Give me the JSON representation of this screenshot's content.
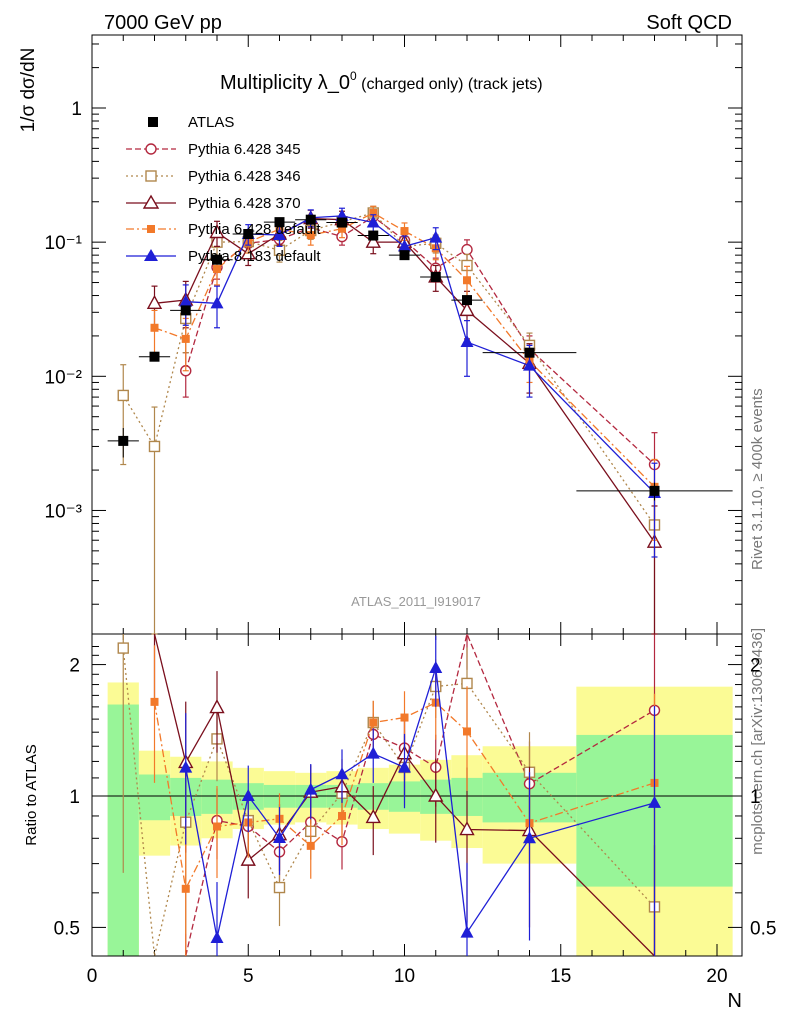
{
  "header": {
    "left": "7000 GeV pp",
    "right": "Soft QCD"
  },
  "side_labels": {
    "rivet": "Rivet 3.1.10, ≥ 400k events",
    "mcplots": "mcplots.cern.ch [arXiv:1306.3436]"
  },
  "chart_data": {
    "type": "line",
    "title_main": "Multiplicity λ_0",
    "title_sup": "0",
    "title_suffix": " (charged only) (track jets)",
    "analysis_label": "ATLAS_2011_I919017",
    "xlabel": "N",
    "ylabel_top": "1/σ dσ/dN",
    "ylabel_bottom": "Ratio to ATLAS",
    "xlim": [
      0,
      20.8
    ],
    "ylim_top": [
      0.00012,
      3.5
    ],
    "ylim_bottom": [
      0.43,
      2.35
    ],
    "x_ticks": [
      "0",
      "5",
      "10",
      "15",
      "20"
    ],
    "y_ticks_top": [
      "1",
      "10⁻¹",
      "10⁻²",
      "10⁻³"
    ],
    "y_ticks_bottom": [
      "0.5",
      "1",
      "2"
    ],
    "legend": [
      "ATLAS",
      "Pythia 6.428 345",
      "Pythia 6.428 346",
      "Pythia 6.428 370",
      "Pythia 6.428 default",
      "Pythia 8.183 default"
    ],
    "data": {
      "name": "ATLAS",
      "color": "#000000",
      "x": [
        1,
        2,
        3,
        4,
        5,
        6,
        7,
        8,
        9,
        10,
        11,
        12,
        14,
        18
      ],
      "y": [
        0.0033,
        0.014,
        0.031,
        0.074,
        0.115,
        0.141,
        0.147,
        0.14,
        0.112,
        0.08,
        0.055,
        0.037,
        0.015,
        0.0014
      ],
      "xerr": [
        0.5,
        0.5,
        0.5,
        0.5,
        0.5,
        0.5,
        0.5,
        0.5,
        0.5,
        0.5,
        0.5,
        0.5,
        1.5,
        2.5
      ],
      "stat_band": [
        0.62,
        0.12,
        0.1,
        0.09,
        0.07,
        0.06,
        0.06,
        0.06,
        0.07,
        0.08,
        0.09,
        0.1,
        0.13,
        0.38
      ],
      "total_band": [
        0.82,
        0.27,
        0.23,
        0.2,
        0.16,
        0.14,
        0.13,
        0.14,
        0.16,
        0.18,
        0.21,
        0.24,
        0.3,
        0.78
      ]
    },
    "series": [
      {
        "name": "Pythia 6.428 345",
        "color": "#b3283f",
        "dash": "6,3",
        "marker": "open-circle",
        "x": [
          3,
          4,
          5,
          6,
          7,
          8,
          9,
          10,
          11,
          12,
          14,
          18
        ],
        "y": [
          0.011,
          0.065,
          0.098,
          0.105,
          0.128,
          0.11,
          0.155,
          0.103,
          0.064,
          0.088,
          0.016,
          0.0022
        ],
        "yerr": [
          0.004,
          0.012,
          0.015,
          0.015,
          0.016,
          0.015,
          0.018,
          0.016,
          0.012,
          0.016,
          0.004,
          0.0016
        ]
      },
      {
        "name": "Pythia 6.428 346",
        "color": "#b0874c",
        "dash": "2,3",
        "marker": "open-square",
        "x": [
          1,
          2,
          3,
          4,
          5,
          6,
          7,
          8,
          9,
          10,
          11,
          12,
          14,
          18
        ],
        "y": [
          0.0072,
          0.003,
          0.027,
          0.1,
          0.101,
          0.087,
          0.122,
          0.142,
          0.165,
          0.093,
          0.098,
          0.067,
          0.017,
          0.00078
        ],
        "yerr": [
          0.005,
          0.0029,
          0.012,
          0.02,
          0.017,
          0.016,
          0.017,
          0.018,
          0.02,
          0.017,
          0.015,
          0.014,
          0.004,
          0.0007
        ]
      },
      {
        "name": "Pythia 6.428 370",
        "color": "#7a0f1d",
        "dash": "",
        "marker": "open-triangle",
        "x": [
          2,
          3,
          4,
          5,
          6,
          7,
          8,
          9,
          10,
          11,
          12,
          14,
          18
        ],
        "y": [
          0.035,
          0.037,
          0.118,
          0.082,
          0.115,
          0.15,
          0.147,
          0.1,
          0.1,
          0.055,
          0.031,
          0.0125,
          0.00058
        ],
        "yerr": [
          0.012,
          0.014,
          0.025,
          0.015,
          0.02,
          0.023,
          0.023,
          0.018,
          0.02,
          0.012,
          0.012,
          0.005,
          0.0005
        ]
      },
      {
        "name": "Pythia 6.428 default",
        "color": "#f2792a",
        "dash": "8,3,2,3",
        "marker": "filled-square",
        "x": [
          2,
          3,
          4,
          5,
          6,
          7,
          8,
          9,
          10,
          11,
          12,
          14,
          18
        ],
        "y": [
          0.023,
          0.019,
          0.063,
          0.1,
          0.125,
          0.113,
          0.126,
          0.165,
          0.121,
          0.09,
          0.052,
          0.013,
          0.0015
        ],
        "yerr": [
          0.008,
          0.008,
          0.015,
          0.017,
          0.018,
          0.018,
          0.018,
          0.02,
          0.018,
          0.016,
          0.014,
          0.004,
          0.0009
        ]
      },
      {
        "name": "Pythia 8.183 default",
        "color": "#1f1fd6",
        "dash": "",
        "marker": "filled-triangle",
        "x": [
          3,
          4,
          5,
          6,
          7,
          8,
          9,
          10,
          11,
          12,
          14,
          18
        ],
        "y": [
          0.036,
          0.035,
          0.115,
          0.113,
          0.152,
          0.157,
          0.14,
          0.093,
          0.108,
          0.018,
          0.012,
          0.00135
        ],
        "yerr": [
          0.012,
          0.012,
          0.02,
          0.02,
          0.022,
          0.022,
          0.02,
          0.018,
          0.02,
          0.008,
          0.005,
          0.0009
        ]
      }
    ]
  }
}
